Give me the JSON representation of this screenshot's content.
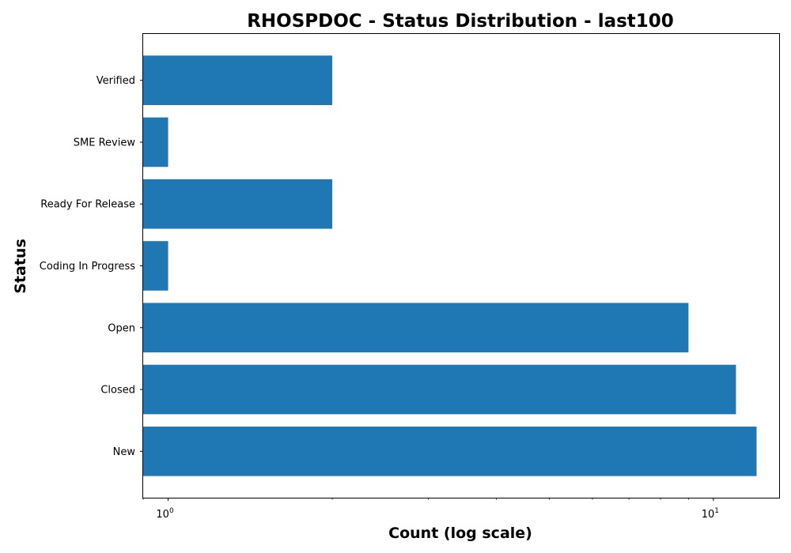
{
  "chart_data": {
    "type": "bar",
    "orientation": "horizontal",
    "title": "RHOSPDOC - Status Distribution - last100",
    "xlabel": "Count (log scale)",
    "ylabel": "Status",
    "x_scale": "log",
    "xlim": [
      0.9,
      13.2
    ],
    "x_ticks": [
      {
        "value": 1,
        "label": "10",
        "exp": "0"
      },
      {
        "value": 10,
        "label": "10",
        "exp": "1"
      }
    ],
    "categories": [
      "New",
      "Closed",
      "Open",
      "Coding In Progress",
      "Ready For Release",
      "SME Review",
      "Verified"
    ],
    "values": [
      12,
      11,
      9,
      1,
      2,
      1,
      2
    ],
    "bar_color": "#1f77b4",
    "grid": false,
    "legend": "none"
  }
}
